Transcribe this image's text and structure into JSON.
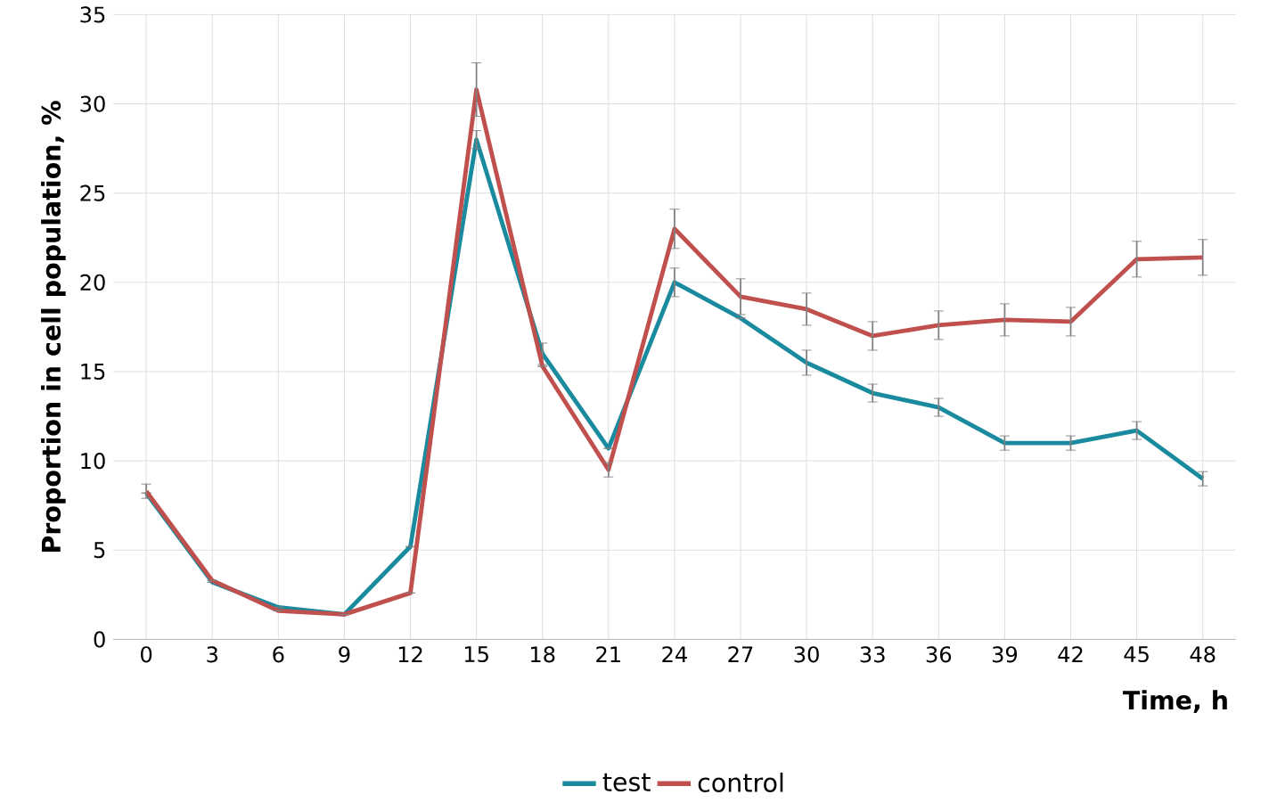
{
  "chart_data": {
    "type": "line",
    "xlabel": "Time, h",
    "ylabel": "Proportion in cell population, %",
    "categories": [
      "0",
      "3",
      "6",
      "9",
      "12",
      "15",
      "18",
      "21",
      "24",
      "27",
      "30",
      "33",
      "36",
      "39",
      "42",
      "45",
      "48"
    ],
    "series": [
      {
        "name": "test",
        "color": "#1a8a9e",
        "values": [
          8.2,
          3.2,
          1.8,
          1.4,
          5.2,
          28,
          16,
          10.7,
          20,
          18,
          15.5,
          13.8,
          13,
          11,
          11,
          11.7,
          9
        ],
        "errors": [
          null,
          null,
          null,
          null,
          null,
          0.5,
          0.6,
          null,
          0.8,
          null,
          0.7,
          0.5,
          0.5,
          0.4,
          0.4,
          0.5,
          0.4
        ]
      },
      {
        "name": "control",
        "color": "#c0504d",
        "values": [
          8.3,
          3.3,
          1.6,
          1.4,
          2.6,
          30.8,
          15.3,
          9.5,
          23,
          19.2,
          18.5,
          17,
          17.6,
          17.9,
          17.8,
          21.3,
          21.4
        ],
        "errors": [
          0.4,
          null,
          null,
          null,
          null,
          1.5,
          null,
          0.4,
          1.1,
          1.0,
          0.9,
          0.8,
          0.8,
          0.9,
          0.8,
          1.0,
          1.0
        ]
      }
    ],
    "ylim": [
      0,
      35
    ],
    "yticks": [
      0,
      5,
      10,
      15,
      20,
      25,
      30,
      35
    ],
    "grid": true,
    "legend": "bottom",
    "marker": "none",
    "line_style": "solid"
  }
}
